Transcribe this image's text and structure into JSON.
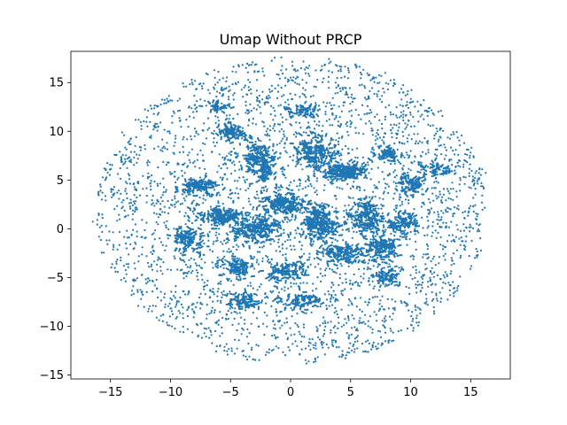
{
  "chart_data": {
    "type": "scatter",
    "title": "Umap Without PRCP",
    "xlabel": "",
    "ylabel": "",
    "xlim": [
      -18.3,
      18.3
    ],
    "ylim": [
      -15.4,
      18.2
    ],
    "xticks": [
      -15,
      -10,
      -5,
      0,
      5,
      10,
      15
    ],
    "yticks": [
      -15,
      -10,
      -5,
      0,
      5,
      10,
      15
    ],
    "grid": false,
    "legend": "none",
    "marker_color": "#1f77b4",
    "distribution": {
      "description_of_points": "dense elliptical cloud of many small points",
      "x_range": [
        -16.2,
        16.4
      ],
      "y_range": [
        -13.9,
        17.6
      ],
      "dense_clusters": [
        {
          "x": 4.5,
          "y": 5.8,
          "rx": 1.8,
          "ry": 0.8,
          "n": 160
        },
        {
          "x": -2.5,
          "y": 6.8,
          "rx": 1.2,
          "ry": 2.0,
          "n": 150
        },
        {
          "x": 1.9,
          "y": 7.8,
          "rx": 1.4,
          "ry": 1.6,
          "n": 140
        },
        {
          "x": -7.5,
          "y": 4.2,
          "rx": 1.4,
          "ry": 0.7,
          "n": 90
        },
        {
          "x": -5.0,
          "y": 9.8,
          "rx": 0.8,
          "ry": 0.8,
          "n": 70
        },
        {
          "x": -5.8,
          "y": 1.2,
          "rx": 1.6,
          "ry": 0.8,
          "n": 110
        },
        {
          "x": -3.0,
          "y": 0.0,
          "rx": 1.8,
          "ry": 1.3,
          "n": 150
        },
        {
          "x": -0.5,
          "y": 2.5,
          "rx": 1.4,
          "ry": 1.0,
          "n": 130
        },
        {
          "x": 2.5,
          "y": 0.5,
          "rx": 1.5,
          "ry": 1.6,
          "n": 160
        },
        {
          "x": 6.2,
          "y": 1.2,
          "rx": 1.3,
          "ry": 1.4,
          "n": 130
        },
        {
          "x": 7.5,
          "y": -2.0,
          "rx": 1.2,
          "ry": 1.2,
          "n": 100
        },
        {
          "x": 9.5,
          "y": 0.5,
          "rx": 1.0,
          "ry": 1.0,
          "n": 70
        },
        {
          "x": 10.0,
          "y": 4.5,
          "rx": 1.0,
          "ry": 0.8,
          "n": 60
        },
        {
          "x": 4.5,
          "y": -2.5,
          "rx": 1.5,
          "ry": 1.0,
          "n": 100
        },
        {
          "x": -8.5,
          "y": -1.0,
          "rx": 1.2,
          "ry": 1.5,
          "n": 80
        },
        {
          "x": -4.5,
          "y": -4.0,
          "rx": 1.2,
          "ry": 0.8,
          "n": 70
        },
        {
          "x": -0.5,
          "y": -4.5,
          "rx": 1.5,
          "ry": 1.0,
          "n": 80
        },
        {
          "x": 1.0,
          "y": -7.5,
          "rx": 1.5,
          "ry": 0.8,
          "n": 60
        },
        {
          "x": -4.0,
          "y": -7.5,
          "rx": 1.4,
          "ry": 0.8,
          "n": 60
        },
        {
          "x": 8.0,
          "y": -5.0,
          "rx": 0.8,
          "ry": 0.7,
          "n": 40
        },
        {
          "x": 8.0,
          "y": 7.5,
          "rx": 1.0,
          "ry": 0.7,
          "n": 50
        },
        {
          "x": 1.0,
          "y": 12.0,
          "rx": 1.3,
          "ry": 0.6,
          "n": 40
        },
        {
          "x": -6.0,
          "y": 12.5,
          "rx": 0.8,
          "ry": 0.5,
          "n": 30
        },
        {
          "x": 12.0,
          "y": 6.0,
          "rx": 1.2,
          "ry": 0.8,
          "n": 40
        }
      ],
      "background_points": 2600
    }
  }
}
